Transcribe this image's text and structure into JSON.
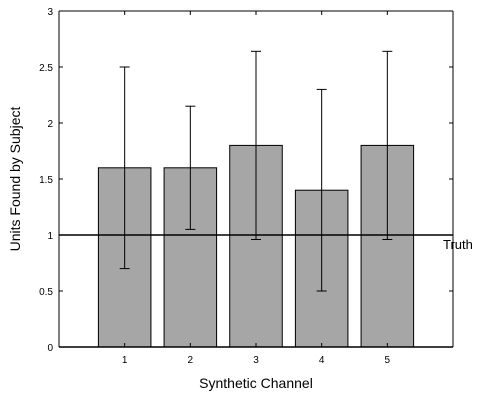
{
  "chart_data": {
    "type": "bar",
    "title": "",
    "xlabel": "Synthetic Channel",
    "ylabel": "Units Found by Subject",
    "categories": [
      "1",
      "2",
      "3",
      "4",
      "5"
    ],
    "values": [
      1.6,
      1.6,
      1.8,
      1.4,
      1.8
    ],
    "error_bars": [
      {
        "low": 0.7,
        "high": 2.5
      },
      {
        "low": 1.05,
        "high": 2.15
      },
      {
        "low": 0.96,
        "high": 2.64
      },
      {
        "low": 0.5,
        "high": 2.3
      },
      {
        "low": 0.96,
        "high": 2.64
      }
    ],
    "ylim": [
      0,
      3
    ],
    "xlim": [
      0,
      6
    ],
    "yticks": [
      0,
      0.5,
      1,
      1.5,
      2,
      2.5,
      3
    ],
    "ytick_labels": [
      "0",
      "0.5",
      "1",
      "1.5",
      "2",
      "2.5",
      "3"
    ],
    "reference_line": {
      "y": 1,
      "label": "Truth"
    },
    "bar_color": "#a6a6a6",
    "edge_color": "#000000",
    "grid": false,
    "legend": "none"
  }
}
